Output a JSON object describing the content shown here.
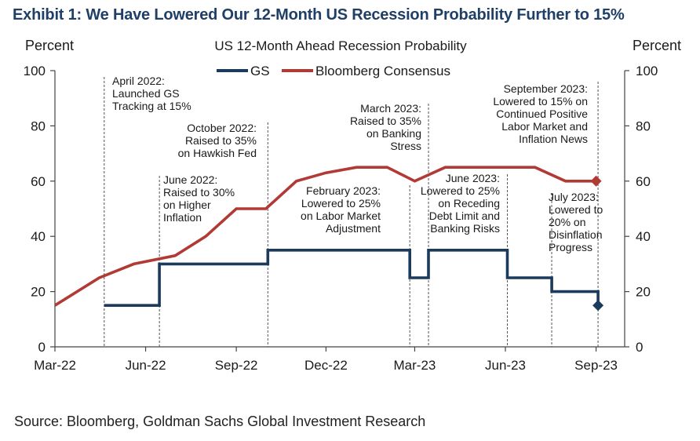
{
  "header": {
    "title": "Exhibit 1: We Have Lowered Our 12-Month US Recession Probability Further to 15%"
  },
  "footer": {
    "source": "Source: Bloomberg, Goldman Sachs Global Investment Research"
  },
  "colors": {
    "gs": "#1b3a5c",
    "bloomberg": "#b13a35",
    "title": "#1f3f66"
  },
  "chart_data": {
    "type": "line",
    "title": "US 12-Month  Ahead  Recession Probability",
    "ylabel_left": "Percent",
    "ylabel_right": "Percent",
    "ylim": [
      0,
      100
    ],
    "yticks": [
      0,
      20,
      40,
      60,
      80,
      100
    ],
    "xlim": [
      "2022-03-01",
      "2023-09-30"
    ],
    "xticks": [
      "2022-03-01",
      "2022-06-01",
      "2022-09-01",
      "2022-12-01",
      "2023-03-01",
      "2023-06-01",
      "2023-09-01"
    ],
    "xtick_labels": [
      "Mar-22",
      "Jun-22",
      "Sep-22",
      "Dec-22",
      "Mar-23",
      "Jun-23",
      "Sep-23"
    ],
    "legend": "top-center",
    "series": [
      {
        "name": "GS",
        "style": "step",
        "x": [
          "2022-04-20",
          "2022-06-15",
          "2022-06-15",
          "2022-10-03",
          "2022-10-03",
          "2023-02-24",
          "2023-02-24",
          "2023-03-15",
          "2023-03-15",
          "2023-06-03",
          "2023-06-03",
          "2023-07-18",
          "2023-07-18",
          "2023-09-03",
          "2023-09-03"
        ],
        "y": [
          15,
          15,
          30,
          30,
          35,
          35,
          25,
          25,
          35,
          35,
          25,
          25,
          20,
          20,
          15
        ],
        "end_marker": "diamond"
      },
      {
        "name": "Bloomberg Consensus",
        "x": [
          "2022-03-01",
          "2022-04-15",
          "2022-05-20",
          "2022-07-01",
          "2022-08-01",
          "2022-09-01",
          "2022-10-01",
          "2022-11-01",
          "2022-12-01",
          "2023-01-01",
          "2023-02-01",
          "2023-03-01",
          "2023-04-01",
          "2023-05-01",
          "2023-06-01",
          "2023-07-01",
          "2023-08-01",
          "2023-09-01"
        ],
        "y": [
          15,
          25,
          30,
          33,
          40,
          50,
          50,
          60,
          63,
          65,
          65,
          60,
          65,
          65,
          65,
          65,
          60,
          60
        ],
        "end_marker": "diamond"
      }
    ],
    "annotations": [
      {
        "x": "2022-04-20",
        "lines": [
          "April 2022:",
          "Launched GS",
          "Tracking at 15%"
        ]
      },
      {
        "x": "2022-06-15",
        "lines": [
          "June 2022:",
          "Raised to 30%",
          "on Higher",
          "Inflation"
        ]
      },
      {
        "x": "2022-10-03",
        "lines": [
          "October 2022:",
          "Raised to 35%",
          "on Hawkish Fed"
        ]
      },
      {
        "x": "2023-02-24",
        "lines": [
          "February 2023:",
          "Lowered to 25%",
          "on Labor Market",
          "Adjustment"
        ]
      },
      {
        "x": "2023-03-15",
        "lines": [
          "March 2023:",
          "Raised to 35%",
          "on Banking",
          "Stress"
        ]
      },
      {
        "x": "2023-06-03",
        "lines": [
          "June 2023:",
          "Lowered to 25%",
          "on Receding",
          "Debt Limit and",
          "Banking Risks"
        ]
      },
      {
        "x": "2023-07-18",
        "lines": [
          "July 2023:",
          "Lowered to",
          "20% on",
          "Disinflation",
          "Progress"
        ]
      },
      {
        "x": "2023-09-03",
        "lines": [
          "September 2023:",
          "Lowered to 15% on",
          "Continued Positive",
          "Labor Market and",
          "Inflation News"
        ]
      }
    ]
  }
}
